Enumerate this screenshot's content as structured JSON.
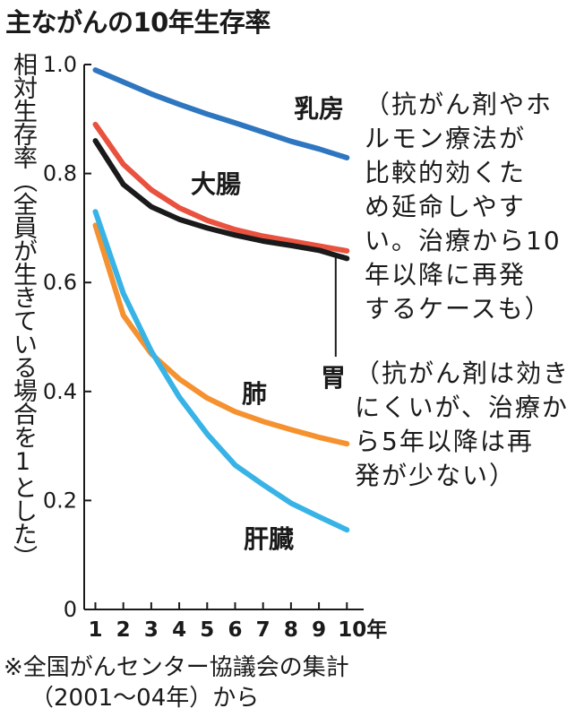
{
  "title": "主ながんの10年生存率",
  "ylabel": "相対生存率（全員が生きている場合を1とした）",
  "footnote": {
    "line1": "※全国がんセンター協議会の集計",
    "line2": "（2001～04年）から"
  },
  "annotations": {
    "breast": {
      "name": "乳房",
      "lines": [
        "（抗がん剤やホ",
        "ルモン療法が",
        "比較的効くた",
        "め延命しやす",
        "い。治療から10",
        "年以降に再発",
        "するケースも）"
      ]
    },
    "stomach": {
      "name": "胃",
      "lines": [
        "（抗がん剤は効き",
        "にくいが、治療か",
        "ら5年以降は再",
        "発が少ない）"
      ]
    }
  },
  "series_labels": {
    "colon": "大腸",
    "lung": "肺",
    "liver": "肝臓"
  },
  "chart_data": {
    "type": "line",
    "title": "主ながんの10年生存率",
    "ylabel": "相対生存率（全員が生きている場合を1とした）",
    "x": [
      1,
      2,
      3,
      4,
      5,
      6,
      7,
      8,
      9,
      10
    ],
    "x_tick_labels": [
      "1",
      "2",
      "3",
      "4",
      "5",
      "6",
      "7",
      "8",
      "9",
      "10年"
    ],
    "y_ticks": [
      0,
      0.2,
      0.4,
      0.6,
      0.8,
      1.0
    ],
    "y_tick_labels": [
      "0",
      "0.2",
      "0.4",
      "0.6",
      "0.8",
      "1.0"
    ],
    "ylim": [
      0,
      1.0
    ],
    "xlim": [
      0.6,
      10.6
    ],
    "grid": false,
    "series": [
      {
        "name": "乳房",
        "color": "#2e76bf",
        "values": [
          0.99,
          0.968,
          0.946,
          0.927,
          0.909,
          0.893,
          0.876,
          0.859,
          0.845,
          0.829
        ]
      },
      {
        "name": "大腸",
        "color": "#e8523f",
        "values": [
          0.89,
          0.817,
          0.77,
          0.737,
          0.714,
          0.697,
          0.685,
          0.676,
          0.667,
          0.658
        ]
      },
      {
        "name": "胃",
        "color": "#1a1a1a",
        "values": [
          0.86,
          0.78,
          0.739,
          0.716,
          0.7,
          0.687,
          0.676,
          0.668,
          0.659,
          0.644
        ]
      },
      {
        "name": "肺",
        "color": "#f5912f",
        "values": [
          0.705,
          0.54,
          0.469,
          0.423,
          0.388,
          0.363,
          0.345,
          0.33,
          0.316,
          0.304
        ]
      },
      {
        "name": "肝臓",
        "color": "#38b3e6",
        "values": [
          0.73,
          0.58,
          0.474,
          0.39,
          0.322,
          0.265,
          0.229,
          0.195,
          0.17,
          0.146
        ]
      }
    ]
  }
}
